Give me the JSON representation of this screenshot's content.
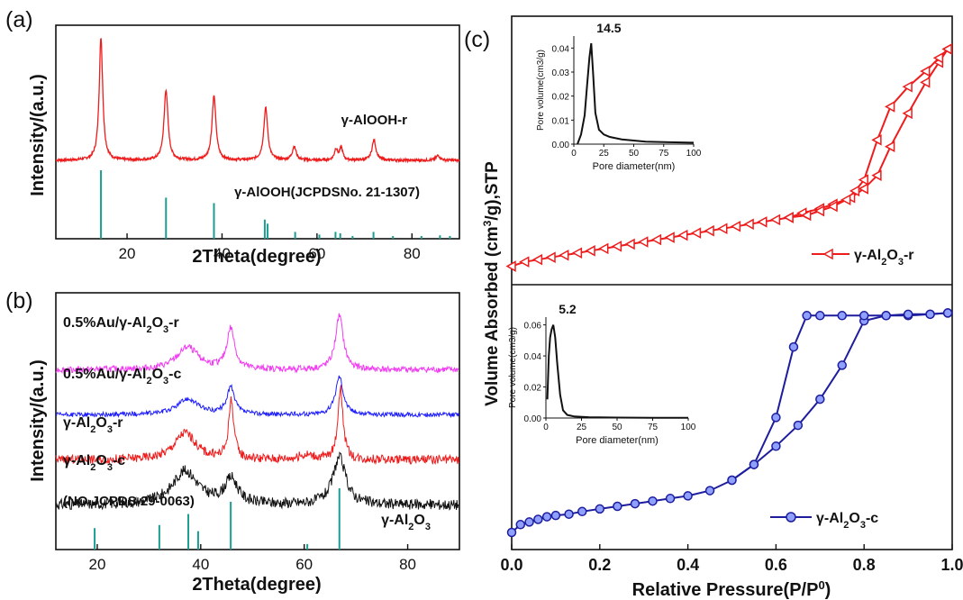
{
  "colors": {
    "red": "#ee1c1c",
    "teal": "#1b9e91",
    "magenta": "#f23cf2",
    "blue": "#1d1dff",
    "black": "#111111",
    "navy": "#1d1d9e"
  },
  "chart_data": [
    {
      "id": "a",
      "panel_label": "(a)",
      "type": "line",
      "xlabel": "2Theta(degree)",
      "ylabel": "Intensity/(a.u.)",
      "xlim": [
        5,
        90
      ],
      "xticks": [
        20,
        40,
        60,
        80
      ],
      "series": [
        {
          "name": "γ-AlOOH-r",
          "color": "#ee1c1c",
          "baseline": 0.15,
          "peaks": [
            [
              14.5,
              2.0,
              0.45
            ],
            [
              28.2,
              1.15,
              0.5
            ],
            [
              38.3,
              1.05,
              0.5
            ],
            [
              49.2,
              0.85,
              0.5
            ],
            [
              55.2,
              0.22,
              0.5
            ],
            [
              64.0,
              0.18,
              0.4
            ],
            [
              65.1,
              0.2,
              0.4
            ],
            [
              72.0,
              0.33,
              0.5
            ],
            [
              85.5,
              0.08,
              0.5
            ]
          ]
        }
      ],
      "reference": {
        "name": "γ-AlOOH(JCPDSNo. 21-1307)",
        "color": "#1b9e91",
        "lines": [
          [
            14.5,
            1.0
          ],
          [
            28.2,
            0.6
          ],
          [
            38.3,
            0.52
          ],
          [
            49.0,
            0.28
          ],
          [
            49.6,
            0.22
          ],
          [
            55.4,
            0.1
          ],
          [
            60.5,
            0.06
          ],
          [
            63.9,
            0.1
          ],
          [
            64.9,
            0.08
          ],
          [
            67.5,
            0.04
          ],
          [
            71.9,
            0.1
          ],
          [
            76.0,
            0.04
          ],
          [
            82.0,
            0.04
          ],
          [
            85.9,
            0.05
          ],
          [
            88.0,
            0.04
          ]
        ]
      }
    },
    {
      "id": "b",
      "panel_label": "(b)",
      "type": "line",
      "xlabel": "2Theta(degree)",
      "ylabel": "Intensity/(a.u.)",
      "xlim": [
        12,
        90
      ],
      "xticks": [
        20,
        40,
        60,
        80
      ],
      "series": [
        {
          "name": "0.5%Au/γ-Al2O3-r",
          "color": "#f23cf2",
          "offset": 3.55,
          "noise": 0.07,
          "peaks": [
            [
              37.5,
              0.5,
              2.5
            ],
            [
              45.8,
              0.9,
              0.9
            ],
            [
              66.8,
              1.2,
              0.9
            ]
          ]
        },
        {
          "name": "0.5%Au/γ-Al2O3-c",
          "color": "#1d1dff",
          "offset": 2.55,
          "noise": 0.05,
          "peaks": [
            [
              37.5,
              0.35,
              2.5
            ],
            [
              45.8,
              0.6,
              0.9
            ],
            [
              66.8,
              0.85,
              0.9
            ]
          ]
        },
        {
          "name": "γ-Al2O3-r",
          "color": "#ee1c1c",
          "offset": 1.55,
          "noise": 0.1,
          "peaks": [
            [
              37.0,
              0.6,
              2.5
            ],
            [
              45.9,
              1.3,
              0.6
            ],
            [
              67.0,
              1.6,
              0.6
            ],
            [
              60.5,
              0.1,
              2.0
            ]
          ]
        },
        {
          "name": "γ-Al2O3-c",
          "color": "#111111",
          "offset": 0.55,
          "noise": 0.12,
          "peaks": [
            [
              37.0,
              0.75,
              3.0
            ],
            [
              45.9,
              0.55,
              1.5
            ],
            [
              66.8,
              1.05,
              1.5
            ]
          ]
        }
      ],
      "reference": {
        "name": "(NO.JCPDS 29-0063)",
        "color": "#1b9e91",
        "lines": [
          [
            19.5,
            0.35
          ],
          [
            32.0,
            0.4
          ],
          [
            37.6,
            0.58
          ],
          [
            39.5,
            0.3
          ],
          [
            45.8,
            0.78
          ],
          [
            60.6,
            0.09
          ],
          [
            66.8,
            1.0
          ]
        ]
      },
      "annotations": [
        "0.5%Au/γ-Al2O3-r",
        "0.5%Au/γ-Al2O3-c",
        "γ-Al2O3-r",
        "γ-Al2O3-c",
        "(NO.JCPDS 29-0063)",
        "γ-Al2O3"
      ]
    },
    {
      "id": "c-top",
      "panel_label": "(c)",
      "type": "line",
      "xlim": [
        0,
        1.0
      ],
      "ylabel": "Volume Absorbed (cm3/g),STP",
      "legend": "γ-Al2O3-r",
      "legend_position": "bottom-right",
      "color": "#ee1c1c",
      "ylim": [
        0,
        1
      ],
      "adsorption": {
        "x": [
          0.0,
          0.03,
          0.06,
          0.09,
          0.12,
          0.15,
          0.18,
          0.21,
          0.24,
          0.27,
          0.3,
          0.33,
          0.36,
          0.39,
          0.42,
          0.45,
          0.48,
          0.51,
          0.54,
          0.57,
          0.6,
          0.63,
          0.66,
          0.7,
          0.73,
          0.77,
          0.8,
          0.83,
          0.86,
          0.9,
          0.94,
          0.97,
          0.99
        ],
        "y": [
          0.01,
          0.03,
          0.04,
          0.05,
          0.06,
          0.07,
          0.08,
          0.09,
          0.1,
          0.11,
          0.12,
          0.13,
          0.14,
          0.15,
          0.16,
          0.17,
          0.18,
          0.19,
          0.2,
          0.21,
          0.22,
          0.23,
          0.25,
          0.27,
          0.29,
          0.32,
          0.36,
          0.42,
          0.55,
          0.7,
          0.84,
          0.93,
          0.99
        ]
      },
      "desorption": {
        "x": [
          0.99,
          0.97,
          0.94,
          0.9,
          0.86,
          0.83,
          0.8,
          0.78,
          0.76,
          0.73,
          0.7,
          0.67,
          0.63
        ],
        "y": [
          0.99,
          0.95,
          0.89,
          0.82,
          0.73,
          0.58,
          0.4,
          0.35,
          0.31,
          0.28,
          0.26,
          0.24,
          0.23
        ]
      },
      "inset": {
        "xlabel": "Pore diameter(nm)",
        "ylabel": "Pore volume(cm3/g)",
        "xlim": [
          0,
          100
        ],
        "ylim": [
          0,
          0.045
        ],
        "xticks": [
          0,
          25,
          50,
          75,
          100
        ],
        "yticks": [
          0.0,
          0.01,
          0.02,
          0.03,
          0.04
        ],
        "peak_label": "14.5",
        "x": [
          3,
          6,
          9,
          11,
          13,
          14.5,
          16,
          18,
          21,
          25,
          30,
          40,
          50,
          60,
          80,
          100
        ],
        "y": [
          0.0,
          0.004,
          0.012,
          0.024,
          0.036,
          0.042,
          0.03,
          0.013,
          0.006,
          0.004,
          0.003,
          0.002,
          0.0015,
          0.001,
          0.0008,
          0.0006
        ]
      }
    },
    {
      "id": "c-bottom",
      "type": "line",
      "xlabel": "Relative Pressure(P/P0)",
      "xlim": [
        0,
        1.0
      ],
      "xticks": [
        0.0,
        0.2,
        0.4,
        0.6,
        0.8,
        1.0
      ],
      "legend": "γ-Al2O3-c",
      "legend_position": "bottom-right",
      "color": "#1d1d9e",
      "ylim": [
        0,
        1
      ],
      "adsorption": {
        "x": [
          0.0,
          0.02,
          0.04,
          0.06,
          0.08,
          0.1,
          0.13,
          0.16,
          0.2,
          0.24,
          0.28,
          0.32,
          0.36,
          0.4,
          0.45,
          0.5,
          0.55,
          0.6,
          0.65,
          0.7,
          0.75,
          0.8,
          0.85,
          0.9,
          0.95,
          0.99
        ],
        "y": [
          0.1,
          0.13,
          0.14,
          0.15,
          0.16,
          0.165,
          0.17,
          0.18,
          0.19,
          0.2,
          0.21,
          0.22,
          0.23,
          0.24,
          0.26,
          0.3,
          0.36,
          0.43,
          0.51,
          0.61,
          0.74,
          0.91,
          0.93,
          0.93,
          0.935,
          0.94
        ]
      },
      "desorption": {
        "x": [
          0.99,
          0.95,
          0.9,
          0.85,
          0.8,
          0.75,
          0.7,
          0.67,
          0.64,
          0.6,
          0.55,
          0.5
        ],
        "y": [
          0.94,
          0.935,
          0.935,
          0.93,
          0.93,
          0.93,
          0.93,
          0.93,
          0.81,
          0.54,
          0.36,
          0.3
        ]
      },
      "inset": {
        "xlabel": "Pore diameter(nm)",
        "ylabel": "Pore volume(cm3/g)",
        "xlim": [
          0,
          100
        ],
        "ylim": [
          0,
          0.065
        ],
        "xticks": [
          0,
          25,
          50,
          75,
          100
        ],
        "yticks": [
          0.0,
          0.02,
          0.04,
          0.06
        ],
        "peak_label": "5.2",
        "x": [
          1,
          2,
          3,
          4,
          5.2,
          6.5,
          8,
          10,
          12,
          15,
          20,
          30,
          50,
          75,
          100
        ],
        "y": [
          0.012,
          0.04,
          0.052,
          0.057,
          0.06,
          0.052,
          0.035,
          0.015,
          0.005,
          0.002,
          0.001,
          0.0005,
          0.0003,
          0.0002,
          0.0001
        ]
      }
    }
  ]
}
